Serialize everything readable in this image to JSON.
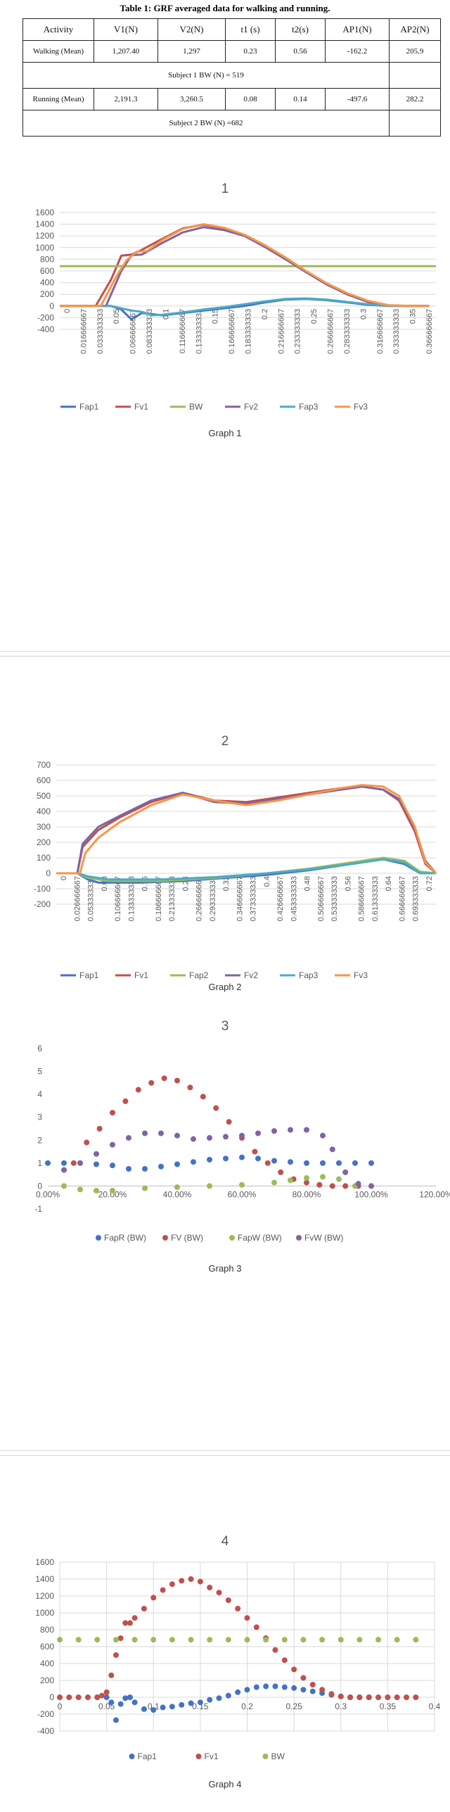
{
  "table": {
    "caption": "Table 1: GRF averaged data for walking and running.",
    "headers": [
      "Activity",
      "V1(N)",
      "V2(N)",
      "t1 (s)",
      "t2(s)",
      "AP1(N)",
      "AP2(N)"
    ],
    "rows": [
      [
        "Walking (Mean)",
        "1,207.40",
        "1,297",
        "0.23",
        "0.56",
        "-162.2",
        "205.9"
      ],
      [
        "Running (Mean)",
        "2,191.3",
        "3,260.5",
        "0.08",
        "0.14",
        "-497.6",
        "282.2"
      ]
    ],
    "bw_notes": [
      "Subject 1 BW (N) = 519",
      "Subject 2 BW (N) =682"
    ]
  },
  "chart_data": [
    {
      "type": "line",
      "title": "1",
      "caption": "Graph 1",
      "ylim": [
        -400,
        1600
      ],
      "yticks": [
        "1600",
        "1400",
        "1200",
        "1000",
        "800",
        "600",
        "400",
        "200",
        "0",
        "-200",
        "-400"
      ],
      "xticks": [
        "0",
        "0.016666667",
        "0.033333333",
        "0.05",
        "0.066666667",
        "0.083333333",
        "0.1",
        "0.116666667",
        "0.133333333",
        "0.15",
        "0.166666667",
        "0.183333333",
        "0.2",
        "0.216666667",
        "0.233333333",
        "0.25",
        "0.266666667",
        "0.283333333",
        "0.3",
        "0.316666667",
        "0.333333333",
        "0.35",
        "0.366666667"
      ],
      "xlim": [
        0,
        0.3667
      ],
      "grid": true,
      "legend_position": "bottom",
      "series": [
        {
          "name": "Fap1",
          "color": "#4472C4",
          "x": [
            0,
            0.05,
            0.06,
            0.07,
            0.08,
            0.09,
            0.1,
            0.12,
            0.14,
            0.16,
            0.18,
            0.2,
            0.22,
            0.24,
            0.26,
            0.28,
            0.3,
            0.32,
            0.34,
            0.36
          ],
          "y": [
            0,
            0,
            -60,
            -230,
            -120,
            -140,
            -160,
            -120,
            -80,
            -40,
            0,
            60,
            110,
            120,
            100,
            60,
            20,
            0,
            0,
            0
          ]
        },
        {
          "name": "Fv1",
          "color": "#C0504D",
          "x": [
            0,
            0.035,
            0.05,
            0.06,
            0.07,
            0.08,
            0.1,
            0.12,
            0.14,
            0.16,
            0.18,
            0.2,
            0.22,
            0.24,
            0.26,
            0.28,
            0.3,
            0.32,
            0.34,
            0.36
          ],
          "y": [
            0,
            0,
            450,
            860,
            880,
            960,
            1150,
            1330,
            1390,
            1330,
            1210,
            1030,
            820,
            590,
            380,
            210,
            80,
            10,
            0,
            0
          ]
        },
        {
          "name": "BW",
          "color": "#9BBB59",
          "x": [
            0,
            0.3667
          ],
          "y": [
            682,
            682
          ]
        },
        {
          "name": "Fv2",
          "color": "#8064A2",
          "x": [
            0,
            0.045,
            0.06,
            0.07,
            0.08,
            0.1,
            0.12,
            0.14,
            0.16,
            0.18,
            0.2,
            0.22,
            0.24,
            0.26,
            0.28,
            0.3,
            0.32,
            0.34,
            0.36
          ],
          "y": [
            0,
            0,
            600,
            870,
            880,
            1080,
            1260,
            1350,
            1300,
            1200,
            1010,
            800,
            580,
            370,
            200,
            70,
            10,
            0,
            0
          ]
        },
        {
          "name": "Fap3",
          "color": "#4BACC6",
          "x": [
            0,
            0.05,
            0.06,
            0.07,
            0.08,
            0.09,
            0.1,
            0.12,
            0.14,
            0.16,
            0.18,
            0.2,
            0.22,
            0.24,
            0.26,
            0.28,
            0.3,
            0.32,
            0.34,
            0.36
          ],
          "y": [
            0,
            0,
            -40,
            -80,
            -100,
            -160,
            -150,
            -110,
            -60,
            -20,
            30,
            80,
            120,
            130,
            110,
            70,
            30,
            0,
            0,
            0
          ]
        },
        {
          "name": "Fv3",
          "color": "#F79646",
          "x": [
            0,
            0.04,
            0.055,
            0.065,
            0.075,
            0.085,
            0.1,
            0.12,
            0.14,
            0.16,
            0.18,
            0.2,
            0.22,
            0.24,
            0.26,
            0.28,
            0.3,
            0.32,
            0.34,
            0.36
          ],
          "y": [
            0,
            0,
            500,
            780,
            930,
            940,
            1130,
            1320,
            1400,
            1340,
            1220,
            1040,
            830,
            600,
            390,
            220,
            90,
            15,
            0,
            0
          ]
        }
      ]
    },
    {
      "type": "line",
      "title": "2",
      "caption": "Graph 2",
      "ylim": [
        -200,
        700
      ],
      "yticks": [
        "700",
        "600",
        "500",
        "400",
        "300",
        "200",
        "100",
        "0",
        "-100",
        "-200"
      ],
      "xticks": [
        "0",
        "0.026666667",
        "0.053333333",
        "0.08",
        "0.106666667",
        "0.133333333",
        "0.16",
        "0.186666667",
        "0.213333333",
        "0.24",
        "0.266666667",
        "0.293333333",
        "0.32",
        "0.346666667",
        "0.373333333",
        "0.4",
        "0.426666667",
        "0.453333333",
        "0.48",
        "0.506666667",
        "0.533333333",
        "0.56",
        "0.586666667",
        "0.613333333",
        "0.64",
        "0.666666667",
        "0.693333333",
        "0.72"
      ],
      "xlim": [
        0,
        0.72
      ],
      "grid": true,
      "legend_position": "bottom",
      "series": [
        {
          "name": "Fap1",
          "color": "#4472C4",
          "x": [
            0,
            0.04,
            0.06,
            0.08,
            0.1,
            0.16,
            0.24,
            0.32,
            0.4,
            0.48,
            0.56,
            0.62,
            0.66,
            0.69,
            0.72
          ],
          "y": [
            0,
            0,
            -40,
            -60,
            -60,
            -60,
            -50,
            -30,
            -10,
            20,
            60,
            90,
            60,
            0,
            0
          ]
        },
        {
          "name": "Fv1",
          "color": "#C0504D",
          "x": [
            0,
            0.04,
            0.05,
            0.08,
            0.12,
            0.18,
            0.24,
            0.3,
            0.36,
            0.42,
            0.48,
            0.54,
            0.58,
            0.62,
            0.65,
            0.68,
            0.7,
            0.72
          ],
          "y": [
            0,
            0,
            170,
            280,
            360,
            460,
            520,
            470,
            460,
            490,
            520,
            550,
            560,
            540,
            470,
            270,
            60,
            0
          ]
        },
        {
          "name": "Fap2",
          "color": "#9BBB59",
          "x": [
            0,
            0.04,
            0.06,
            0.1,
            0.2,
            0.3,
            0.4,
            0.48,
            0.56,
            0.62,
            0.66,
            0.69,
            0.72
          ],
          "y": [
            0,
            0,
            -30,
            -50,
            -50,
            -30,
            0,
            30,
            70,
            100,
            80,
            10,
            0
          ]
        },
        {
          "name": "Fv2",
          "color": "#8064A2",
          "x": [
            0,
            0.04,
            0.05,
            0.08,
            0.12,
            0.18,
            0.24,
            0.3,
            0.36,
            0.42,
            0.48,
            0.54,
            0.58,
            0.62,
            0.65,
            0.68,
            0.7,
            0.72
          ],
          "y": [
            0,
            0,
            190,
            300,
            370,
            470,
            520,
            460,
            450,
            480,
            510,
            540,
            560,
            540,
            480,
            290,
            80,
            0
          ]
        },
        {
          "name": "Fap3",
          "color": "#4BACC6",
          "x": [
            0,
            0.04,
            0.06,
            0.1,
            0.2,
            0.3,
            0.4,
            0.48,
            0.56,
            0.62,
            0.66,
            0.69,
            0.72
          ],
          "y": [
            0,
            0,
            -20,
            -40,
            -40,
            -25,
            0,
            25,
            60,
            90,
            70,
            0,
            0
          ]
        },
        {
          "name": "Fv3",
          "color": "#F79646",
          "x": [
            0,
            0.045,
            0.055,
            0.08,
            0.12,
            0.18,
            0.24,
            0.3,
            0.36,
            0.42,
            0.48,
            0.54,
            0.58,
            0.62,
            0.65,
            0.68,
            0.7,
            0.72
          ],
          "y": [
            0,
            0,
            130,
            230,
            330,
            440,
            510,
            470,
            440,
            470,
            510,
            550,
            570,
            560,
            500,
            300,
            70,
            0
          ]
        }
      ]
    },
    {
      "type": "scatter",
      "title": "3",
      "caption": "Graph 3",
      "ylim": [
        -1,
        6
      ],
      "yticks": [
        "6",
        "5",
        "4",
        "3",
        "2",
        "1",
        "0",
        "-1"
      ],
      "xlim": [
        0,
        1.2
      ],
      "xticks": [
        "0.00%",
        "20.00%",
        "40.00%",
        "60.00%",
        "80.00%",
        "100.00%",
        "120.00%"
      ],
      "grid": false,
      "legend_position": "bottom",
      "series": [
        {
          "name": "FapR (BW)",
          "color": "#4472C4",
          "x": [
            0,
            0.05,
            0.1,
            0.15,
            0.2,
            0.25,
            0.3,
            0.35,
            0.4,
            0.45,
            0.5,
            0.55,
            0.6,
            0.65,
            0.7,
            0.75,
            0.8,
            0.85,
            0.9,
            0.95,
            1.0
          ],
          "y": [
            1,
            1,
            1,
            0.95,
            0.9,
            0.75,
            0.75,
            0.85,
            0.95,
            1.05,
            1.15,
            1.2,
            1.25,
            1.2,
            1.1,
            1.05,
            1.0,
            1.0,
            1.0,
            1.0,
            1.0
          ]
        },
        {
          "name": "FV (BW)",
          "color": "#C0504D",
          "x": [
            0.08,
            0.12,
            0.16,
            0.2,
            0.24,
            0.28,
            0.32,
            0.36,
            0.4,
            0.44,
            0.48,
            0.52,
            0.56,
            0.6,
            0.64,
            0.68,
            0.72,
            0.76,
            0.8,
            0.84,
            0.88,
            0.92,
            0.96
          ],
          "y": [
            1.0,
            1.9,
            2.5,
            3.2,
            3.7,
            4.2,
            4.5,
            4.7,
            4.6,
            4.3,
            3.9,
            3.4,
            2.8,
            2.1,
            1.5,
            1.0,
            0.6,
            0.3,
            0.15,
            0.05,
            0.0,
            0.0,
            0.0
          ]
        },
        {
          "name": "FapW (BW)",
          "color": "#9BBB59",
          "x": [
            0.05,
            0.1,
            0.15,
            0.2,
            0.3,
            0.4,
            0.5,
            0.6,
            0.7,
            0.75,
            0.8,
            0.85,
            0.9,
            0.95
          ],
          "y": [
            0,
            -0.15,
            -0.2,
            -0.2,
            -0.1,
            -0.05,
            0,
            0.05,
            0.15,
            0.25,
            0.35,
            0.4,
            0.3,
            0.0
          ]
        },
        {
          "name": "FvW (BW)",
          "color": "#8064A2",
          "x": [
            0.05,
            0.1,
            0.15,
            0.2,
            0.25,
            0.3,
            0.35,
            0.4,
            0.45,
            0.5,
            0.55,
            0.6,
            0.65,
            0.7,
            0.75,
            0.8,
            0.85,
            0.88,
            0.92,
            0.96,
            1.0
          ],
          "y": [
            0.7,
            1.0,
            1.4,
            1.8,
            2.1,
            2.3,
            2.3,
            2.2,
            2.05,
            2.1,
            2.15,
            2.2,
            2.3,
            2.4,
            2.45,
            2.45,
            2.2,
            1.6,
            0.6,
            0.1,
            0.0
          ]
        }
      ]
    },
    {
      "type": "scatter",
      "title": "4",
      "caption": "Graph 4",
      "ylim": [
        -400,
        1600
      ],
      "yticks": [
        "1600",
        "1400",
        "1200",
        "1000",
        "800",
        "600",
        "400",
        "200",
        "0",
        "-200",
        "-400"
      ],
      "xlim": [
        0,
        0.4
      ],
      "xticks": [
        "0",
        "0.05",
        "0.1",
        "0.15",
        "0.2",
        "0.25",
        "0.3",
        "0.35",
        "0.4"
      ],
      "grid": true,
      "legend_position": "bottom",
      "series": [
        {
          "name": "Fap1",
          "color": "#4472C4",
          "x": [
            0.04,
            0.05,
            0.055,
            0.06,
            0.065,
            0.07,
            0.075,
            0.08,
            0.09,
            0.1,
            0.11,
            0.12,
            0.13,
            0.14,
            0.15,
            0.16,
            0.17,
            0.18,
            0.19,
            0.2,
            0.21,
            0.22,
            0.23,
            0.24,
            0.25,
            0.26,
            0.27,
            0.28,
            0.29,
            0.3,
            0.31,
            0.32,
            0.33
          ],
          "y": [
            0,
            0,
            -60,
            -270,
            -80,
            -10,
            0,
            -60,
            -140,
            -150,
            -120,
            -110,
            -90,
            -70,
            -60,
            -30,
            -10,
            20,
            60,
            90,
            120,
            130,
            130,
            120,
            110,
            90,
            70,
            50,
            30,
            10,
            0,
            0,
            0
          ]
        },
        {
          "name": "Fv1",
          "color": "#C0504D",
          "x": [
            0,
            0.01,
            0.02,
            0.03,
            0.04,
            0.045,
            0.05,
            0.055,
            0.06,
            0.065,
            0.07,
            0.075,
            0.08,
            0.09,
            0.1,
            0.11,
            0.12,
            0.13,
            0.14,
            0.15,
            0.16,
            0.17,
            0.18,
            0.19,
            0.2,
            0.21,
            0.22,
            0.23,
            0.24,
            0.25,
            0.26,
            0.27,
            0.28,
            0.29,
            0.3,
            0.31,
            0.32,
            0.33,
            0.34,
            0.35,
            0.36,
            0.37,
            0.38
          ],
          "y": [
            0,
            0,
            0,
            0,
            0,
            20,
            60,
            260,
            500,
            700,
            880,
            880,
            940,
            1050,
            1180,
            1270,
            1340,
            1380,
            1400,
            1370,
            1300,
            1240,
            1150,
            1050,
            940,
            830,
            700,
            560,
            440,
            330,
            230,
            150,
            90,
            40,
            10,
            0,
            0,
            0,
            0,
            0,
            0,
            0,
            0
          ]
        },
        {
          "name": "BW",
          "color": "#9BBB59",
          "x": [
            0,
            0.02,
            0.04,
            0.06,
            0.08,
            0.1,
            0.12,
            0.14,
            0.16,
            0.18,
            0.2,
            0.22,
            0.24,
            0.26,
            0.28,
            0.3,
            0.32,
            0.34,
            0.36,
            0.38
          ],
          "y": [
            682,
            682,
            682,
            682,
            682,
            682,
            682,
            682,
            682,
            682,
            682,
            682,
            682,
            682,
            682,
            682,
            682,
            682,
            682,
            682
          ]
        }
      ]
    }
  ]
}
